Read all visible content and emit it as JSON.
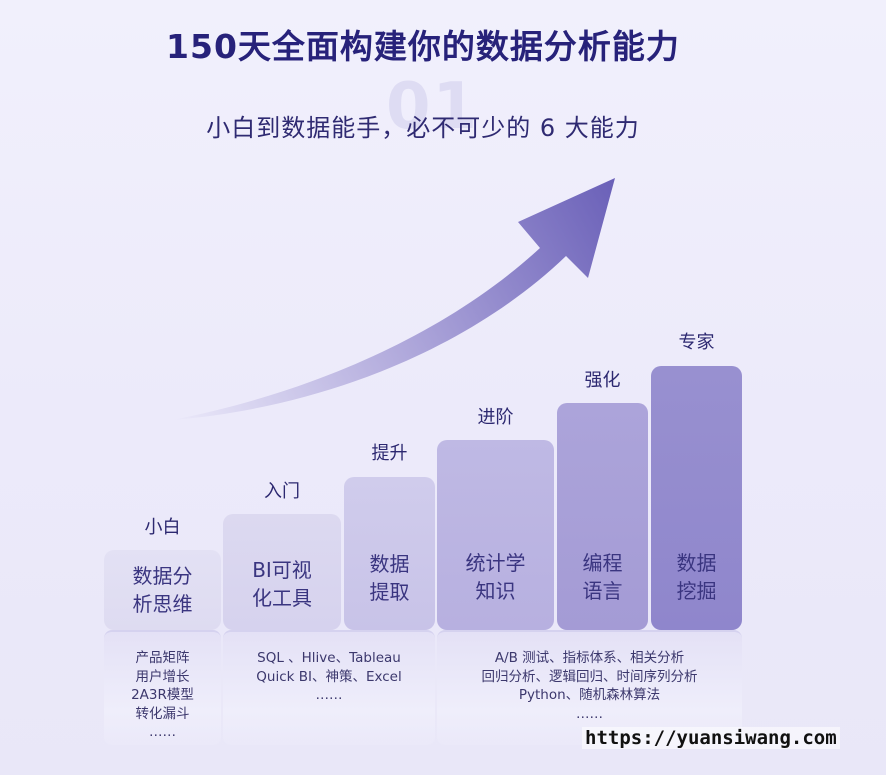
{
  "title": "150天全面构建你的数据分析能力",
  "watermark_number": "01",
  "subtitle": "小白到数据能手，必不可少的 6 大能力",
  "levels": [
    {
      "stage": "小白",
      "skill": "数据分\n析思维"
    },
    {
      "stage": "入门",
      "skill": "BI可视\n化工具"
    },
    {
      "stage": "提升",
      "skill": "数据\n提取"
    },
    {
      "stage": "进阶",
      "skill": "统计学\n知识"
    },
    {
      "stage": "强化",
      "skill": "编程\n语言"
    },
    {
      "stage": "专家",
      "skill": "数据\n挖掘"
    }
  ],
  "details": [
    {
      "lines": [
        "产品矩阵",
        "用户增长",
        "2A3R模型",
        "转化漏斗",
        "……"
      ]
    },
    {
      "lines": [
        "SQL 、Hlive、Tableau",
        "Quick BI、神策、Excel",
        "……"
      ]
    },
    {
      "lines": [
        "A/B 测试、指标体系、相关分析",
        "回归分析、逻辑回归、时间序列分析",
        "Python、随机森林算法",
        "……"
      ]
    }
  ],
  "watermark_url": "https://yuansiwang.com",
  "colors": {
    "title": "#27227a",
    "arrow_dark": "#6a60b8",
    "arrow_light": "#e6e4f6",
    "bar_light": "#e2e0f3",
    "bar_dark": "#8f86cc"
  }
}
